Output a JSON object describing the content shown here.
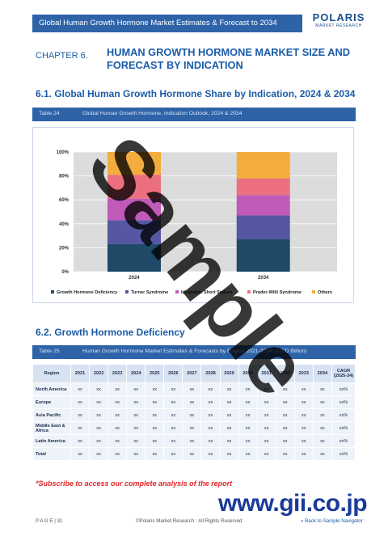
{
  "header": {
    "title": "Global Human Growth Hormone Market Estimates & Forecast to 2034",
    "logo_main": "POLARIS",
    "logo_sub": "MARKET RESEARCH"
  },
  "chapter": {
    "label": "CHAPTER 6.",
    "title": "HUMAN GROWTH HORMONE MARKET SIZE AND FORECAST BY INDICATION"
  },
  "section1": {
    "heading": "6.1.   Global Human Growth Hormone Share by Indication, 2024 & 2034"
  },
  "table24": {
    "number": "Table 24",
    "title": "Global Human Growth Hormone, Indication Outlook, 2024 & 2034"
  },
  "chart_data": {
    "type": "bar",
    "stacked": true,
    "categories": [
      "2024",
      "2034"
    ],
    "ylim": [
      0,
      100
    ],
    "y_ticks": [
      "0%",
      "20%",
      "40%",
      "60%",
      "80%",
      "100%"
    ],
    "grid": true,
    "legend_position": "bottom",
    "series": [
      {
        "name": "Growth Hormone Deficiency",
        "values": [
          23,
          27
        ],
        "color": "#1e4a68"
      },
      {
        "name": "Turner Syndrome",
        "values": [
          20,
          20
        ],
        "color": "#5557a3"
      },
      {
        "name": "Idiopathic Short Stature",
        "values": [
          18,
          17
        ],
        "color": "#c05ab8"
      },
      {
        "name": "Prader-Willi Syndrome",
        "values": [
          20,
          14
        ],
        "color": "#ec6f80"
      },
      {
        "name": "Others",
        "values": [
          19,
          22
        ],
        "color": "#f3ad3e"
      }
    ]
  },
  "section2": {
    "heading": "6.2.   Growth Hormone Deficiency"
  },
  "table25": {
    "number": "Table 25",
    "title": "Human Growth Hormone Market Estimates & Forecasts by Region 2021-2034, (USD Billion)",
    "headers": [
      "Region",
      "2021",
      "2022",
      "2023",
      "2024",
      "2025",
      "2026",
      "2027",
      "2028",
      "2029",
      "2030",
      "2031",
      "2032",
      "2033",
      "2034",
      "CAGR (2025-34)"
    ],
    "rows": [
      [
        "North America",
        "xx",
        "xx",
        "xx",
        "xx",
        "xx",
        "xx",
        "xx",
        "xx",
        "xx",
        "xx",
        "xx",
        "xx",
        "xx",
        "xx",
        "xx%"
      ],
      [
        "Europe",
        "xx",
        "xx",
        "xx",
        "xx",
        "xx",
        "xx",
        "xx",
        "xx",
        "xx",
        "xx",
        "xx",
        "xx",
        "xx",
        "xx",
        "xx%"
      ],
      [
        "Asia Pacific",
        "xx",
        "xx",
        "xx",
        "xx",
        "xx",
        "xx",
        "xx",
        "xx",
        "xx",
        "xx",
        "xx",
        "xx",
        "xx",
        "xx",
        "xx%"
      ],
      [
        "Middle East & Africa",
        "xx",
        "xx",
        "xx",
        "xx",
        "xx",
        "xx",
        "xx",
        "xx",
        "xx",
        "xx",
        "xx",
        "xx",
        "xx",
        "xx",
        "xx%"
      ],
      [
        "Latin America",
        "xx",
        "xx",
        "xx",
        "xx",
        "xx",
        "xx",
        "xx",
        "xx",
        "xx",
        "xx",
        "xx",
        "xx",
        "xx",
        "xx",
        "xx%"
      ],
      [
        "Total",
        "xx",
        "xx",
        "xx",
        "xx",
        "xx",
        "xx",
        "xx",
        "xx",
        "xx",
        "xx",
        "xx",
        "xx",
        "xx",
        "xx",
        "xx%"
      ]
    ]
  },
  "subscribe_note": "*Subscribe to access our complete analysis of the report",
  "gii_logo": "www.gii.co.jp",
  "watermark": "Sample",
  "footer": {
    "page_label": "P A G E  | 31",
    "copyright": "©Polaris Market Research : All Rights Reserved",
    "back_link": "« Back to Sample Navigator"
  }
}
